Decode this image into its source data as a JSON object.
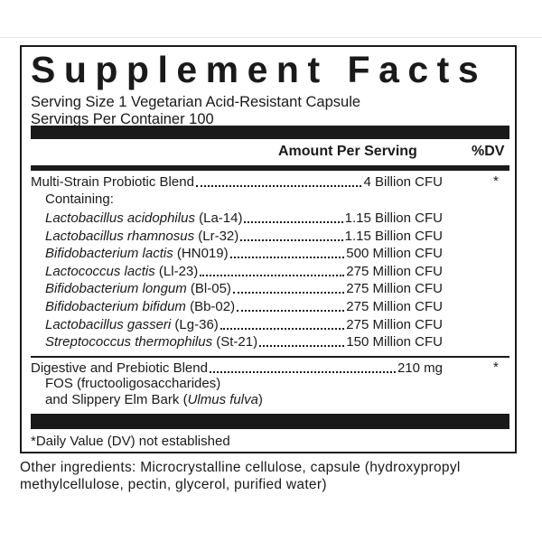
{
  "title": "Supplement Facts",
  "serving_size": "Serving Size 1 Vegetarian Acid-Resistant Capsule",
  "servings_per_container": "Servings Per Container 100",
  "header": {
    "amount": "Amount Per Serving",
    "dv": "%DV"
  },
  "probiotic": {
    "name": "Multi-Strain Probiotic Blend",
    "amount": "4 Billion CFU",
    "dv": "*",
    "containing": "Containing:",
    "strains": [
      {
        "species": "Lactobacillus acidophilus",
        "code": "(La-14)",
        "amount": "1.15 Billion CFU"
      },
      {
        "species": "Lactobacillus rhamnosus",
        "code": "(Lr-32)",
        "amount": "1.15 Billion CFU"
      },
      {
        "species": "Bifidobacterium lactis",
        "code": "(HN019)",
        "amount": "500 Million CFU"
      },
      {
        "species": "Lactococcus lactis",
        "code": "(Ll-23)",
        "amount": "275 Million CFU"
      },
      {
        "species": "Bifidobacterium longum",
        "code": "(Bl-05)",
        "amount": "275 Million  CFU"
      },
      {
        "species": "Bifidobacterium bifidum",
        "code": "(Bb-02)",
        "amount": "275 Million CFU"
      },
      {
        "species": "Lactobacillus gasseri",
        "code": "(Lg-36)",
        "amount": "275 Million CFU"
      },
      {
        "species": "Streptococcus thermophilus",
        "code": "(St-21)",
        "amount": "150 Million CFU"
      }
    ]
  },
  "digestive": {
    "name": "Digestive and Prebiotic Blend",
    "amount": "210 mg",
    "dv": "*",
    "line1": "FOS (fructooligosaccharides)",
    "line2_prefix": "and Slippery Elm Bark (",
    "line2_italic": "Ulmus fulva",
    "line2_suffix": ")"
  },
  "footnote": "*Daily Value (DV) not established",
  "other_ingredients": [
    "Other ingredients: Microcrystalline cellulose, capsule (hydroxypropyl",
    "methylcellulose, pectin, glycerol, purified water)"
  ]
}
